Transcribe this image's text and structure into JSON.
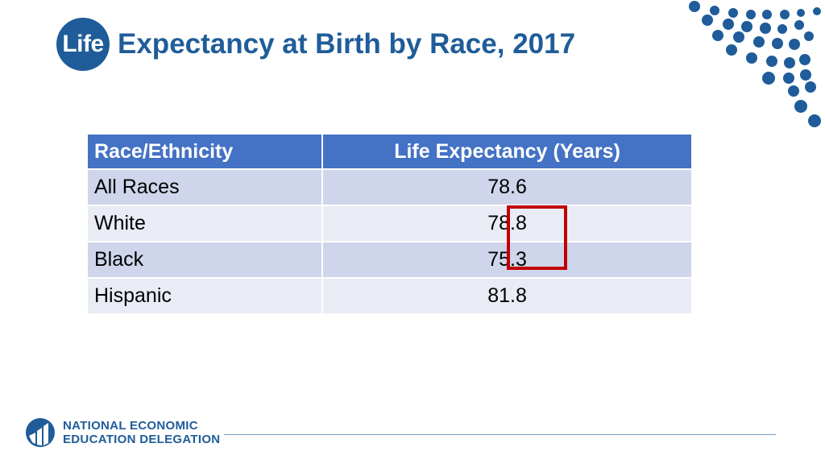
{
  "slide": {
    "title_highlight": "Life",
    "title_rest": "Expectancy at Birth by Race, 2017"
  },
  "table": {
    "headers": [
      "Race/Ethnicity",
      "Life Expectancy (Years)"
    ],
    "rows": [
      {
        "race": "All Races",
        "value": "78.6"
      },
      {
        "race": "White",
        "value": "78.8"
      },
      {
        "race": "Black",
        "value": "75.3"
      },
      {
        "race": "Hispanic",
        "value": "81.8"
      }
    ]
  },
  "footer": {
    "org_line1": "NATIONAL ECONOMIC",
    "org_line2": "EDUCATION DELEGATION"
  },
  "colors": {
    "brand_blue": "#1f5c99",
    "header_blue": "#4472c4",
    "highlight_red": "#c00000"
  }
}
